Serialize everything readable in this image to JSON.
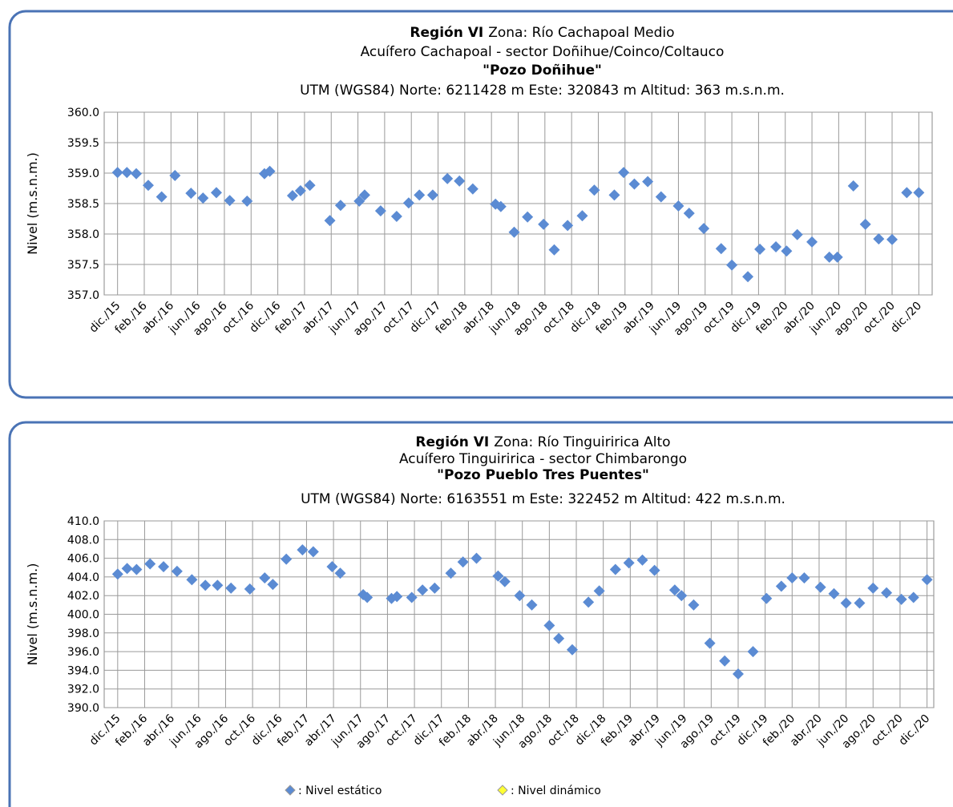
{
  "chart_data": [
    {
      "type": "scatter",
      "title_bold": "Región  VI",
      "title": "Zona: Río Cachapoal Medio",
      "subtitle": "Acuífero Cachapoal - sector Doñihue/Coinco/Coltauco",
      "well": "\"Pozo Doñihue\"",
      "coordinates": "UTM (WGS84) Norte: 6211428 m  Este: 320843 m   Altitud: 363 m.s.n.m.",
      "y_label": "Nivel (m.s.n.m.)",
      "grid": true,
      "xlim": [
        -1,
        61
      ],
      "ylim": [
        357.0,
        360.0
      ],
      "yticks": [
        {
          "value": 357.0,
          "label": "357.0"
        },
        {
          "value": 357.5,
          "label": "357.5"
        },
        {
          "value": 358.0,
          "label": "358.0"
        },
        {
          "value": 358.5,
          "label": "358.5"
        },
        {
          "value": 359.0,
          "label": "359.0"
        },
        {
          "value": 359.5,
          "label": "359.5"
        },
        {
          "value": 360.0,
          "label": "360.0"
        }
      ],
      "xticks": [
        {
          "value": 0,
          "label": "dic./15"
        },
        {
          "value": 2,
          "label": "feb./16"
        },
        {
          "value": 4,
          "label": "abr./16"
        },
        {
          "value": 6,
          "label": "jun./16"
        },
        {
          "value": 8,
          "label": "ago./16"
        },
        {
          "value": 10,
          "label": "oct./16"
        },
        {
          "value": 12,
          "label": "dic./16"
        },
        {
          "value": 14,
          "label": "feb./17"
        },
        {
          "value": 16,
          "label": "abr./17"
        },
        {
          "value": 18,
          "label": "jun./17"
        },
        {
          "value": 20,
          "label": "ago./17"
        },
        {
          "value": 22,
          "label": "oct./17"
        },
        {
          "value": 24,
          "label": "dic./17"
        },
        {
          "value": 26,
          "label": "feb./18"
        },
        {
          "value": 28,
          "label": "abr./18"
        },
        {
          "value": 30,
          "label": "jun./18"
        },
        {
          "value": 32,
          "label": "ago./18"
        },
        {
          "value": 34,
          "label": "oct./18"
        },
        {
          "value": 36,
          "label": "dic./18"
        },
        {
          "value": 38,
          "label": "feb./19"
        },
        {
          "value": 40,
          "label": "abr./19"
        },
        {
          "value": 42,
          "label": "jun./19"
        },
        {
          "value": 44,
          "label": "ago./19"
        },
        {
          "value": 46,
          "label": "oct./19"
        },
        {
          "value": 48,
          "label": "dic./19"
        },
        {
          "value": 50,
          "label": "feb./20"
        },
        {
          "value": 52,
          "label": "abr./20"
        },
        {
          "value": 54,
          "label": "jun./20"
        },
        {
          "value": 56,
          "label": "ago./20"
        },
        {
          "value": 58,
          "label": "oct./20"
        },
        {
          "value": 60,
          "label": "dic./20"
        }
      ],
      "series": [
        {
          "name": ": Nivel estático",
          "color": "#5b8bd3",
          "x": [
            0,
            0.7,
            1.4,
            2.3,
            3.3,
            4.3,
            5.5,
            6.4,
            7.4,
            8.4,
            9.7,
            11.0,
            11.4,
            13.1,
            13.7,
            14.4,
            15.9,
            16.7,
            18.1,
            18.5,
            19.7,
            20.9,
            21.8,
            22.6,
            23.6,
            24.7,
            25.6,
            26.6,
            28.3,
            28.7,
            29.7,
            30.7,
            31.9,
            32.7,
            33.7,
            34.8,
            35.7,
            37.2,
            37.9,
            38.7,
            39.7,
            40.7,
            42.0,
            42.8,
            43.9,
            45.2,
            46.0,
            47.2,
            48.1,
            49.3,
            50.1,
            50.9,
            52.0,
            53.3,
            53.9,
            55.1,
            56.0,
            57.0,
            58.0,
            59.1,
            60.0
          ],
          "values": [
            359.01,
            359.01,
            358.99,
            358.8,
            358.61,
            358.96,
            358.67,
            358.59,
            358.68,
            358.55,
            358.54,
            358.99,
            359.03,
            358.63,
            358.71,
            358.8,
            358.22,
            358.47,
            358.54,
            358.64,
            358.38,
            358.29,
            358.51,
            358.64,
            358.64,
            358.91,
            358.87,
            358.74,
            358.49,
            358.45,
            358.03,
            358.28,
            358.16,
            357.74,
            358.14,
            358.3,
            358.72,
            358.64,
            359.01,
            358.82,
            358.86,
            358.61,
            358.46,
            358.34,
            358.09,
            357.76,
            357.49,
            357.3,
            357.75,
            357.79,
            357.72,
            357.99,
            357.87,
            357.62,
            357.62,
            358.79,
            358.16,
            357.92,
            357.91,
            358.68,
            358.68
          ]
        }
      ]
    },
    {
      "type": "scatter",
      "title_bold": "Región VI",
      "title": "Zona: Río Tinguiririca Alto",
      "subtitle": "Acuífero Tinguiririca - sector Chimbarongo",
      "well": "\"Pozo Pueblo Tres Puentes\"",
      "coordinates": "UTM (WGS84) Norte: 6163551 m Este: 322452 m   Altitud: 422 m.s.n.m.",
      "y_label": "Nivel (m.s.n.m.)",
      "grid": true,
      "xlim": [
        -1,
        60.5
      ],
      "ylim": [
        390.0,
        410.0
      ],
      "yticks": [
        {
          "value": 390.0,
          "label": "390.0"
        },
        {
          "value": 392.0,
          "label": "392.0"
        },
        {
          "value": 394.0,
          "label": "394.0"
        },
        {
          "value": 396.0,
          "label": "396.0"
        },
        {
          "value": 398.0,
          "label": "398.0"
        },
        {
          "value": 400.0,
          "label": "400.0"
        },
        {
          "value": 402.0,
          "label": "402.0"
        },
        {
          "value": 404.0,
          "label": "404.0"
        },
        {
          "value": 406.0,
          "label": "406.0"
        },
        {
          "value": 408.0,
          "label": "408.0"
        },
        {
          "value": 410.0,
          "label": "410.0"
        }
      ],
      "xticks": [
        {
          "value": 0,
          "label": "dic./15"
        },
        {
          "value": 2,
          "label": "feb./16"
        },
        {
          "value": 4,
          "label": "abr./16"
        },
        {
          "value": 6,
          "label": "jun./16"
        },
        {
          "value": 8,
          "label": "ago./16"
        },
        {
          "value": 10,
          "label": "oct./16"
        },
        {
          "value": 12,
          "label": "dic./16"
        },
        {
          "value": 14,
          "label": "feb./17"
        },
        {
          "value": 16,
          "label": "abr./17"
        },
        {
          "value": 18,
          "label": "jun./17"
        },
        {
          "value": 20,
          "label": "ago./17"
        },
        {
          "value": 22,
          "label": "oct./17"
        },
        {
          "value": 24,
          "label": "dic./17"
        },
        {
          "value": 26,
          "label": "feb./18"
        },
        {
          "value": 28,
          "label": "abr./18"
        },
        {
          "value": 30,
          "label": "jun./18"
        },
        {
          "value": 32,
          "label": "ago./18"
        },
        {
          "value": 34,
          "label": "oct./18"
        },
        {
          "value": 36,
          "label": "dic./18"
        },
        {
          "value": 38,
          "label": "feb./19"
        },
        {
          "value": 40,
          "label": "abr./19"
        },
        {
          "value": 42,
          "label": "jun./19"
        },
        {
          "value": 44,
          "label": "ago./19"
        },
        {
          "value": 46,
          "label": "oct./19"
        },
        {
          "value": 48,
          "label": "dic./19"
        },
        {
          "value": 50,
          "label": "feb./20"
        },
        {
          "value": 52,
          "label": "abr./20"
        },
        {
          "value": 54,
          "label": "jun./20"
        },
        {
          "value": 56,
          "label": "ago./20"
        },
        {
          "value": 58,
          "label": "oct./20"
        },
        {
          "value": 60,
          "label": "dic./20"
        }
      ],
      "series": [
        {
          "name": ": Nivel estático",
          "color": "#5b8bd3",
          "x": [
            0,
            0.7,
            1.4,
            2.4,
            3.4,
            4.4,
            5.5,
            6.5,
            7.4,
            8.4,
            9.8,
            10.9,
            11.5,
            12.5,
            13.7,
            14.5,
            15.9,
            16.5,
            18.2,
            18.5,
            20.3,
            20.7,
            21.8,
            22.6,
            23.5,
            24.7,
            25.6,
            26.6,
            28.2,
            28.7,
            29.8,
            30.7,
            32.0,
            32.7,
            33.7,
            34.9,
            35.7,
            36.9,
            37.9,
            38.9,
            39.8,
            41.3,
            41.8,
            42.7,
            43.9,
            45.0,
            46.0,
            47.1,
            48.1,
            49.2,
            50.0,
            50.9,
            52.1,
            53.1,
            54.0,
            55.0,
            56.0,
            57.0,
            58.1,
            59.0,
            60.0
          ],
          "values": [
            404.3,
            404.9,
            404.8,
            405.4,
            405.1,
            404.6,
            403.7,
            403.1,
            403.1,
            402.8,
            402.7,
            403.9,
            403.2,
            405.9,
            406.9,
            406.7,
            405.1,
            404.4,
            402.1,
            401.8,
            401.7,
            401.9,
            401.8,
            402.6,
            402.8,
            404.4,
            405.6,
            406.0,
            404.1,
            403.5,
            402.0,
            401.0,
            398.8,
            397.4,
            396.2,
            401.3,
            402.5,
            404.8,
            405.5,
            405.8,
            404.7,
            402.6,
            402.0,
            401.0,
            396.9,
            395.0,
            393.6,
            396.0,
            401.7,
            403.0,
            403.9,
            403.9,
            402.9,
            402.2,
            401.2,
            401.2,
            402.8,
            402.3,
            401.6,
            401.8,
            403.7
          ]
        },
        {
          "name": ": Nivel dinámico",
          "color": "#ffff33",
          "x": [],
          "values": []
        }
      ]
    }
  ]
}
